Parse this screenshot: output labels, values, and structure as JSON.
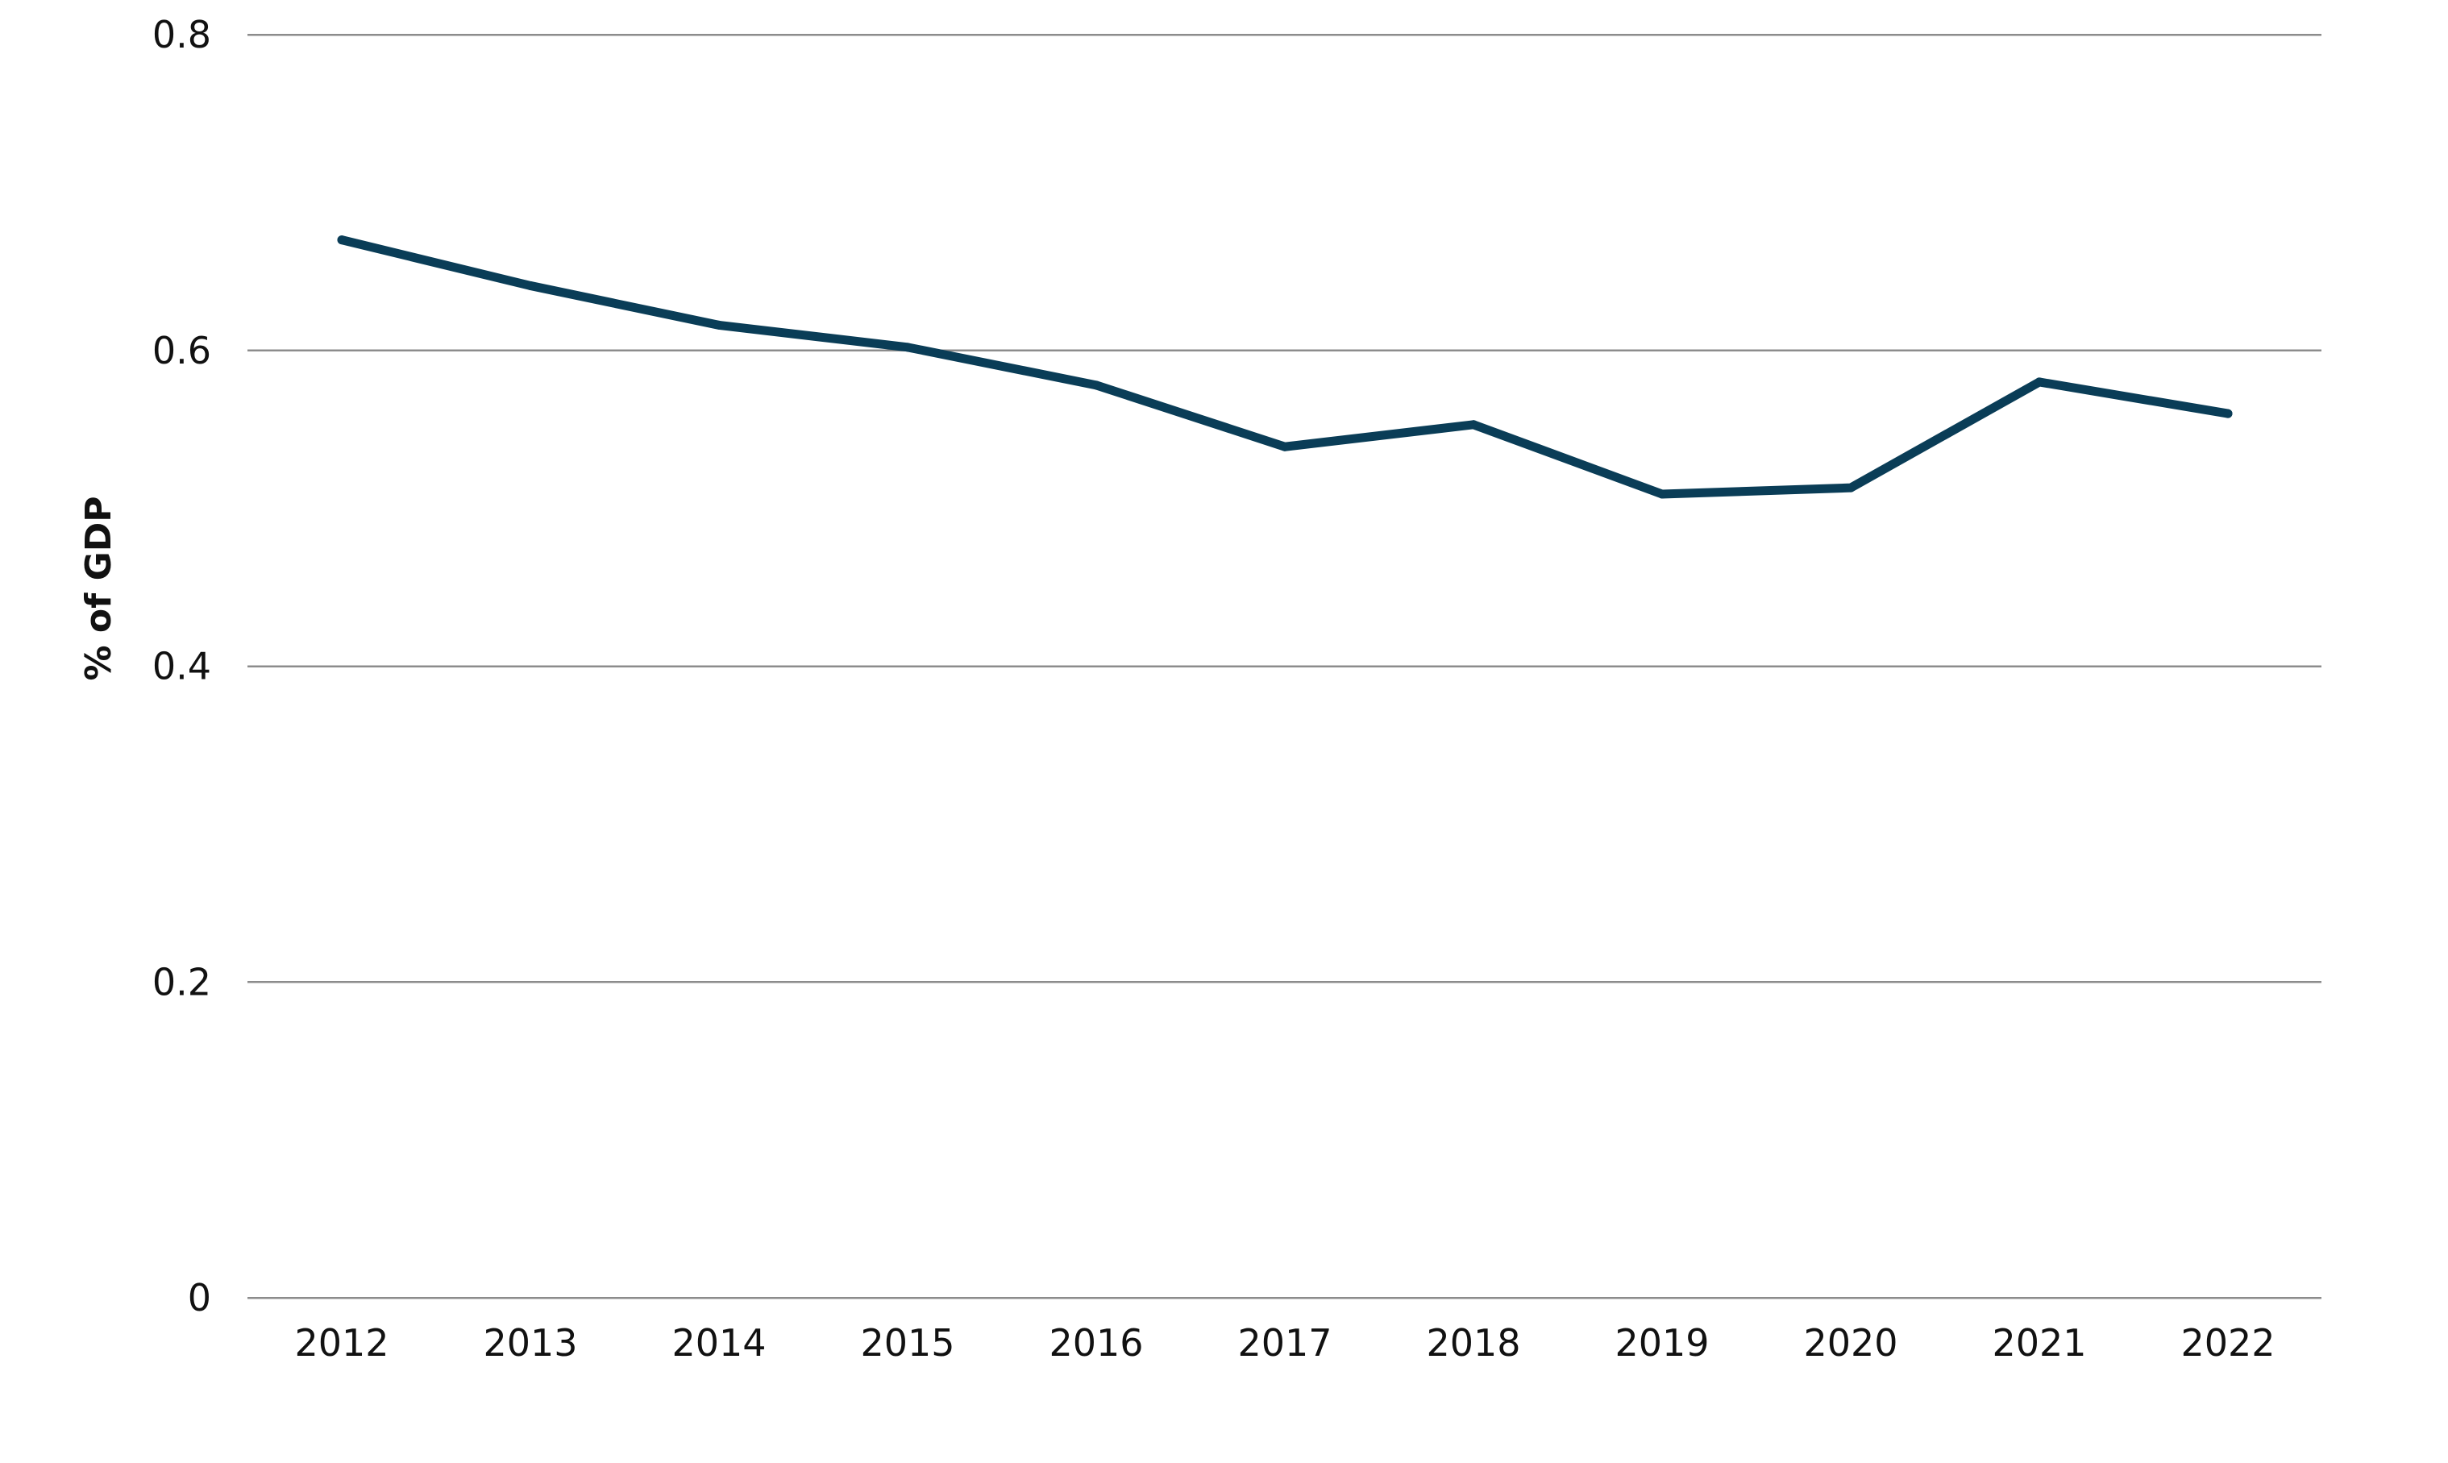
{
  "colors": {
    "series_line": "#0a3d57",
    "grid": "#8c8c8c",
    "text": "#111111",
    "background": "#ffffff"
  },
  "chart_data": {
    "type": "line",
    "title": "",
    "xlabel": "",
    "ylabel": "% of GDP",
    "x": [
      "2012",
      "2013",
      "2014",
      "2015",
      "2016",
      "2017",
      "2018",
      "2019",
      "2020",
      "2021",
      "2022"
    ],
    "series": [
      {
        "values": [
          0.67,
          0.641,
          0.616,
          0.602,
          0.578,
          0.539,
          0.553,
          0.509,
          0.513,
          0.58,
          0.56
        ]
      }
    ],
    "ylim": [
      0,
      0.8
    ],
    "yticks": [
      0,
      0.2,
      0.4,
      0.6,
      0.8
    ],
    "ytick_labels": [
      "0",
      "0.2",
      "0.4",
      "0.6",
      "0.8"
    ],
    "grid": "horizontal",
    "legend": "none"
  }
}
